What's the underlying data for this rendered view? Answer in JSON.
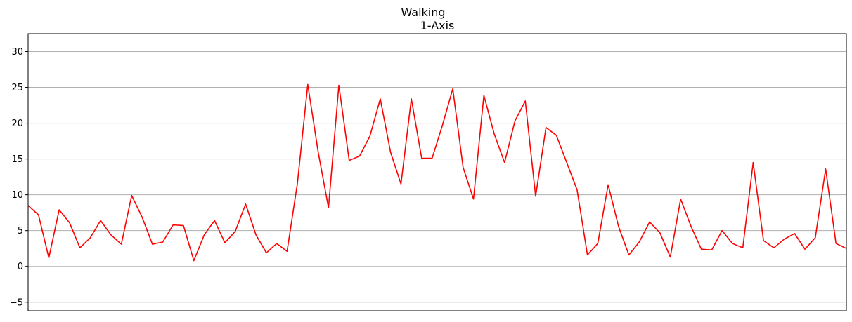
{
  "chart_data": {
    "type": "line",
    "title": "Walking",
    "subtitle": "1-Axis",
    "xlabel": "",
    "ylabel": "",
    "ylim": [
      -6.2,
      32.5
    ],
    "xlim": [
      0,
      79
    ],
    "yticks": [
      -5,
      0,
      5,
      10,
      15,
      20,
      25,
      30
    ],
    "grid": "y",
    "legend": "none",
    "x_ticks_visible": false,
    "series": [
      {
        "color": "#ff0000",
        "values": [
          8.5,
          7.2,
          1.2,
          7.9,
          6.1,
          2.6,
          4.0,
          6.4,
          4.4,
          3.1,
          9.9,
          6.9,
          3.1,
          3.4,
          5.8,
          5.7,
          0.8,
          4.4,
          6.4,
          3.3,
          4.9,
          8.7,
          4.4,
          1.9,
          3.2,
          2.1,
          11.6,
          25.4,
          16.0,
          8.2,
          25.3,
          14.8,
          15.4,
          18.2,
          23.4,
          15.9,
          11.5,
          23.4,
          15.1,
          15.1,
          19.7,
          24.8,
          13.8,
          9.4,
          23.9,
          18.5,
          14.5,
          20.3,
          23.1,
          9.8,
          19.4,
          18.3,
          14.5,
          10.7,
          1.6,
          3.2,
          11.4,
          5.6,
          1.6,
          3.4,
          6.2,
          4.7,
          1.3,
          9.4,
          5.6,
          2.4,
          2.3,
          5.0,
          3.2,
          2.6,
          14.5,
          3.6,
          2.6,
          3.8,
          4.6,
          2.4,
          4.0,
          13.6,
          3.2,
          2.5
        ]
      }
    ]
  }
}
